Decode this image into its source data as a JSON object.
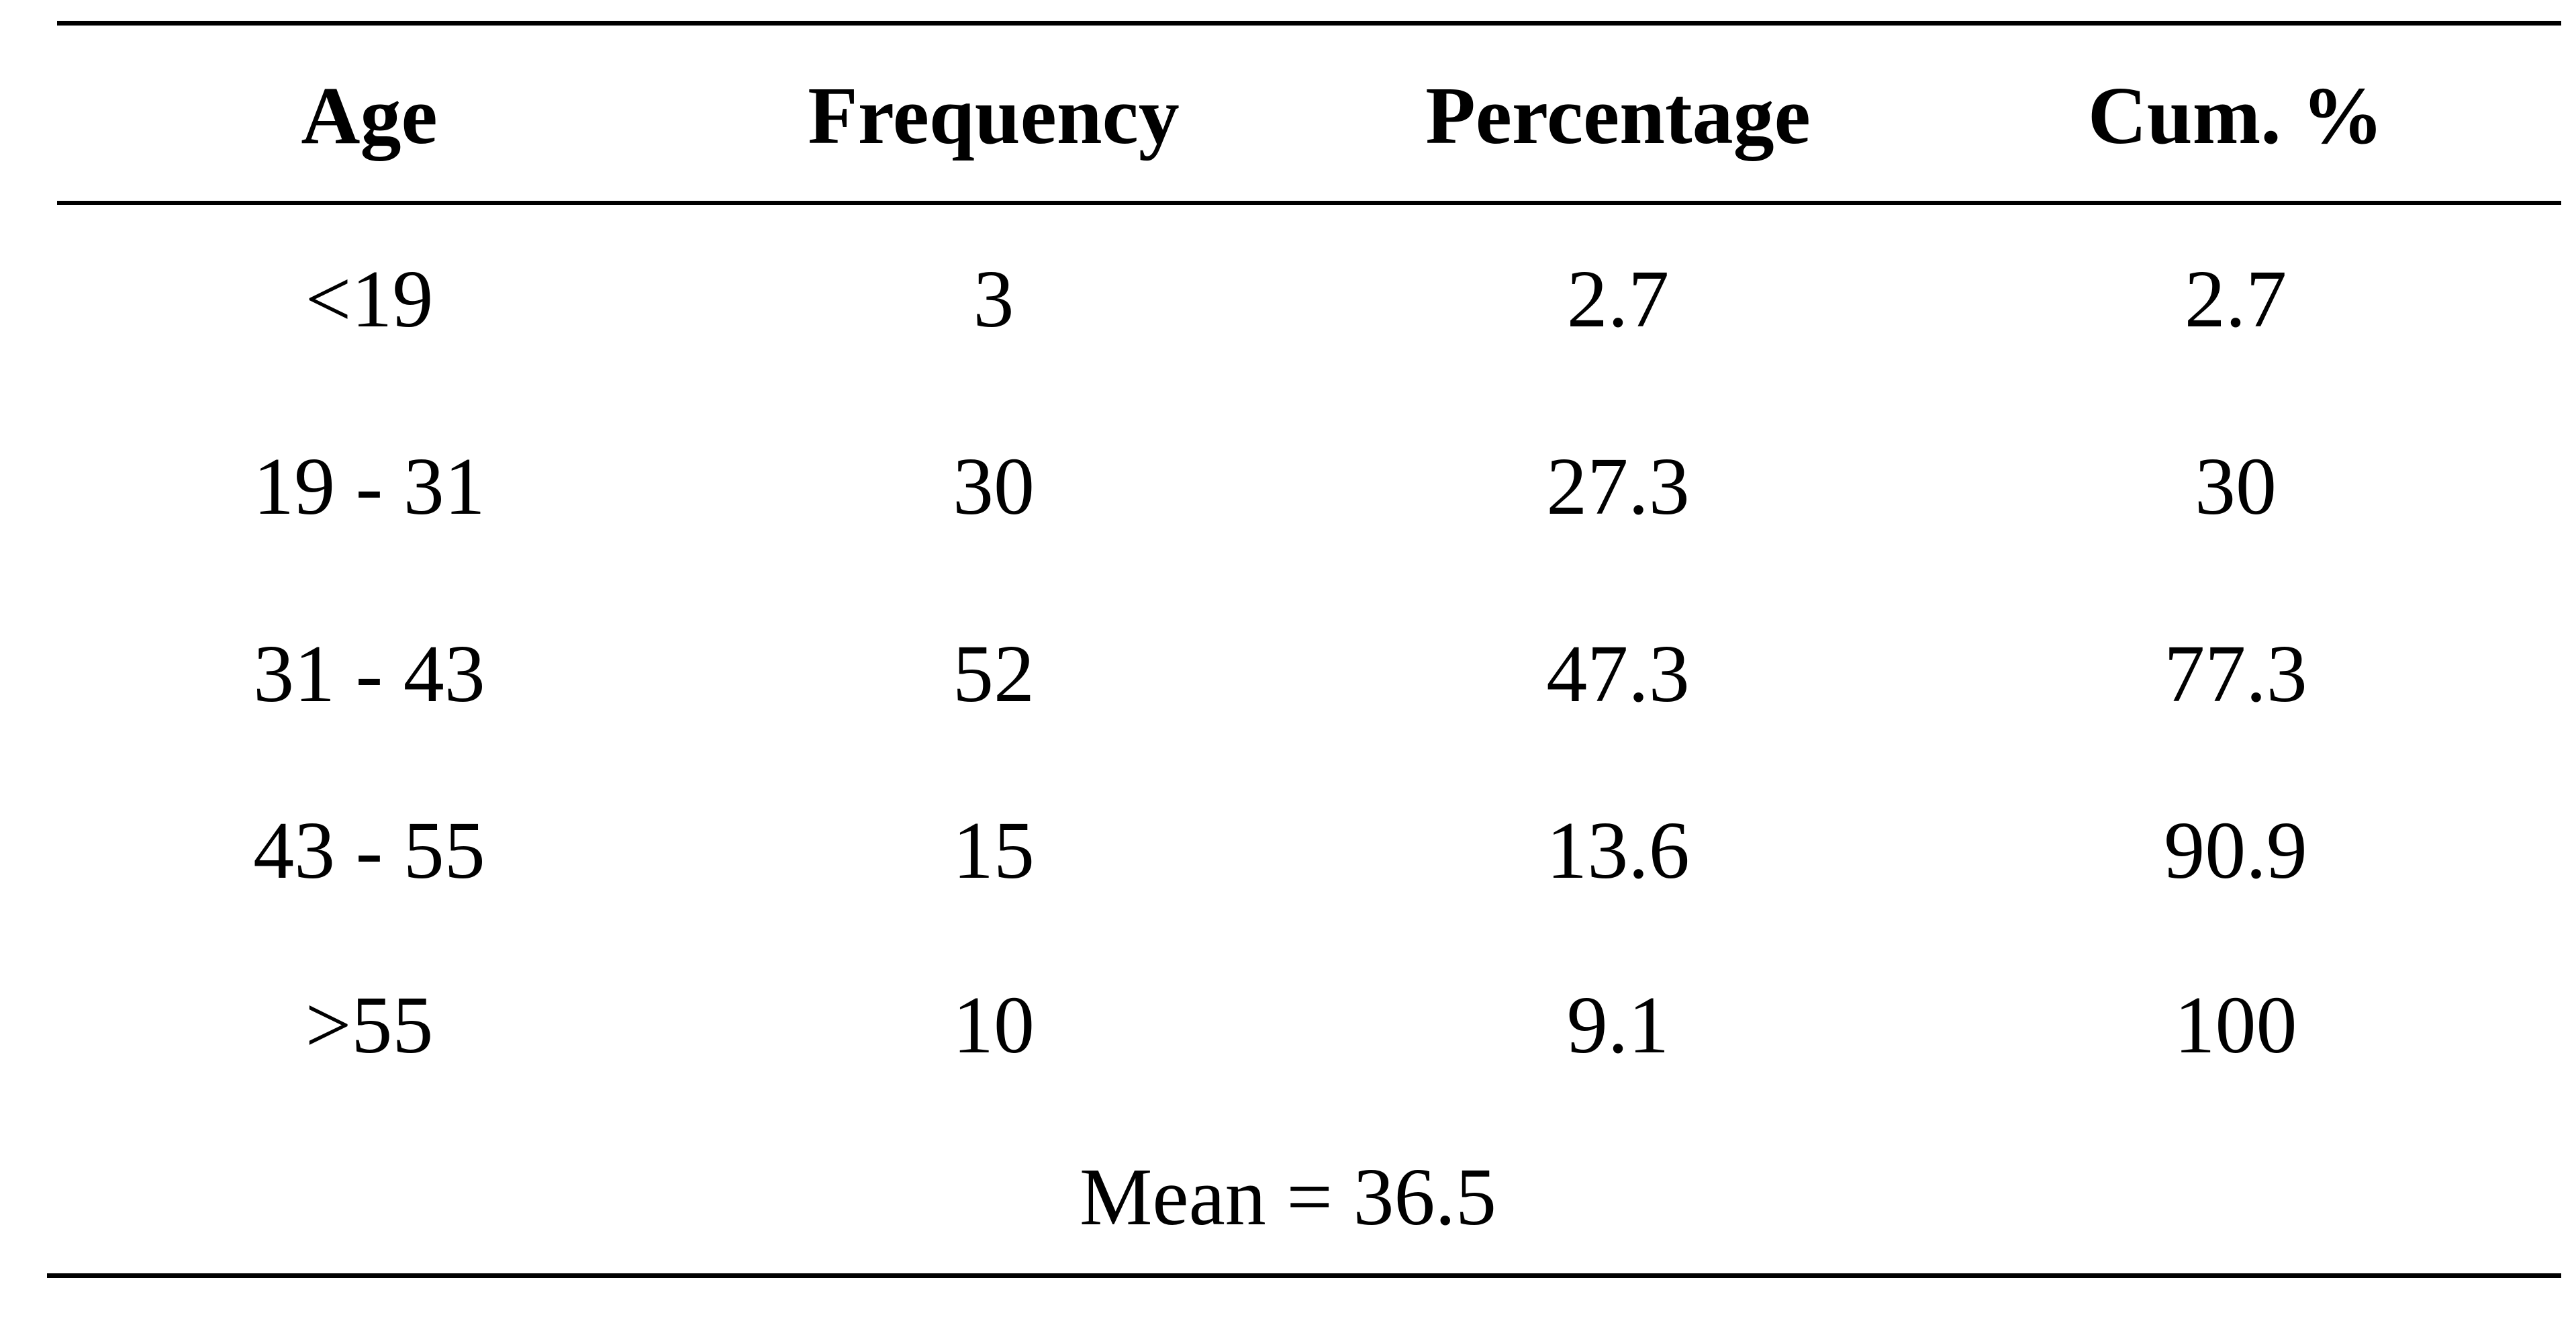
{
  "table": {
    "headers": [
      "Age",
      "Frequency",
      "Percentage",
      "Cum. %"
    ],
    "rows": [
      [
        "<19",
        "3",
        "2.7",
        "2.7"
      ],
      [
        "19 - 31",
        "30",
        "27.3",
        "30"
      ],
      [
        "31 - 43",
        "52",
        "47.3",
        "77.3"
      ],
      [
        "43 - 55",
        "15",
        "13.6",
        "90.9"
      ],
      [
        ">55",
        "10",
        "9.1",
        "100"
      ]
    ],
    "footnote": "Mean = 36.5"
  }
}
